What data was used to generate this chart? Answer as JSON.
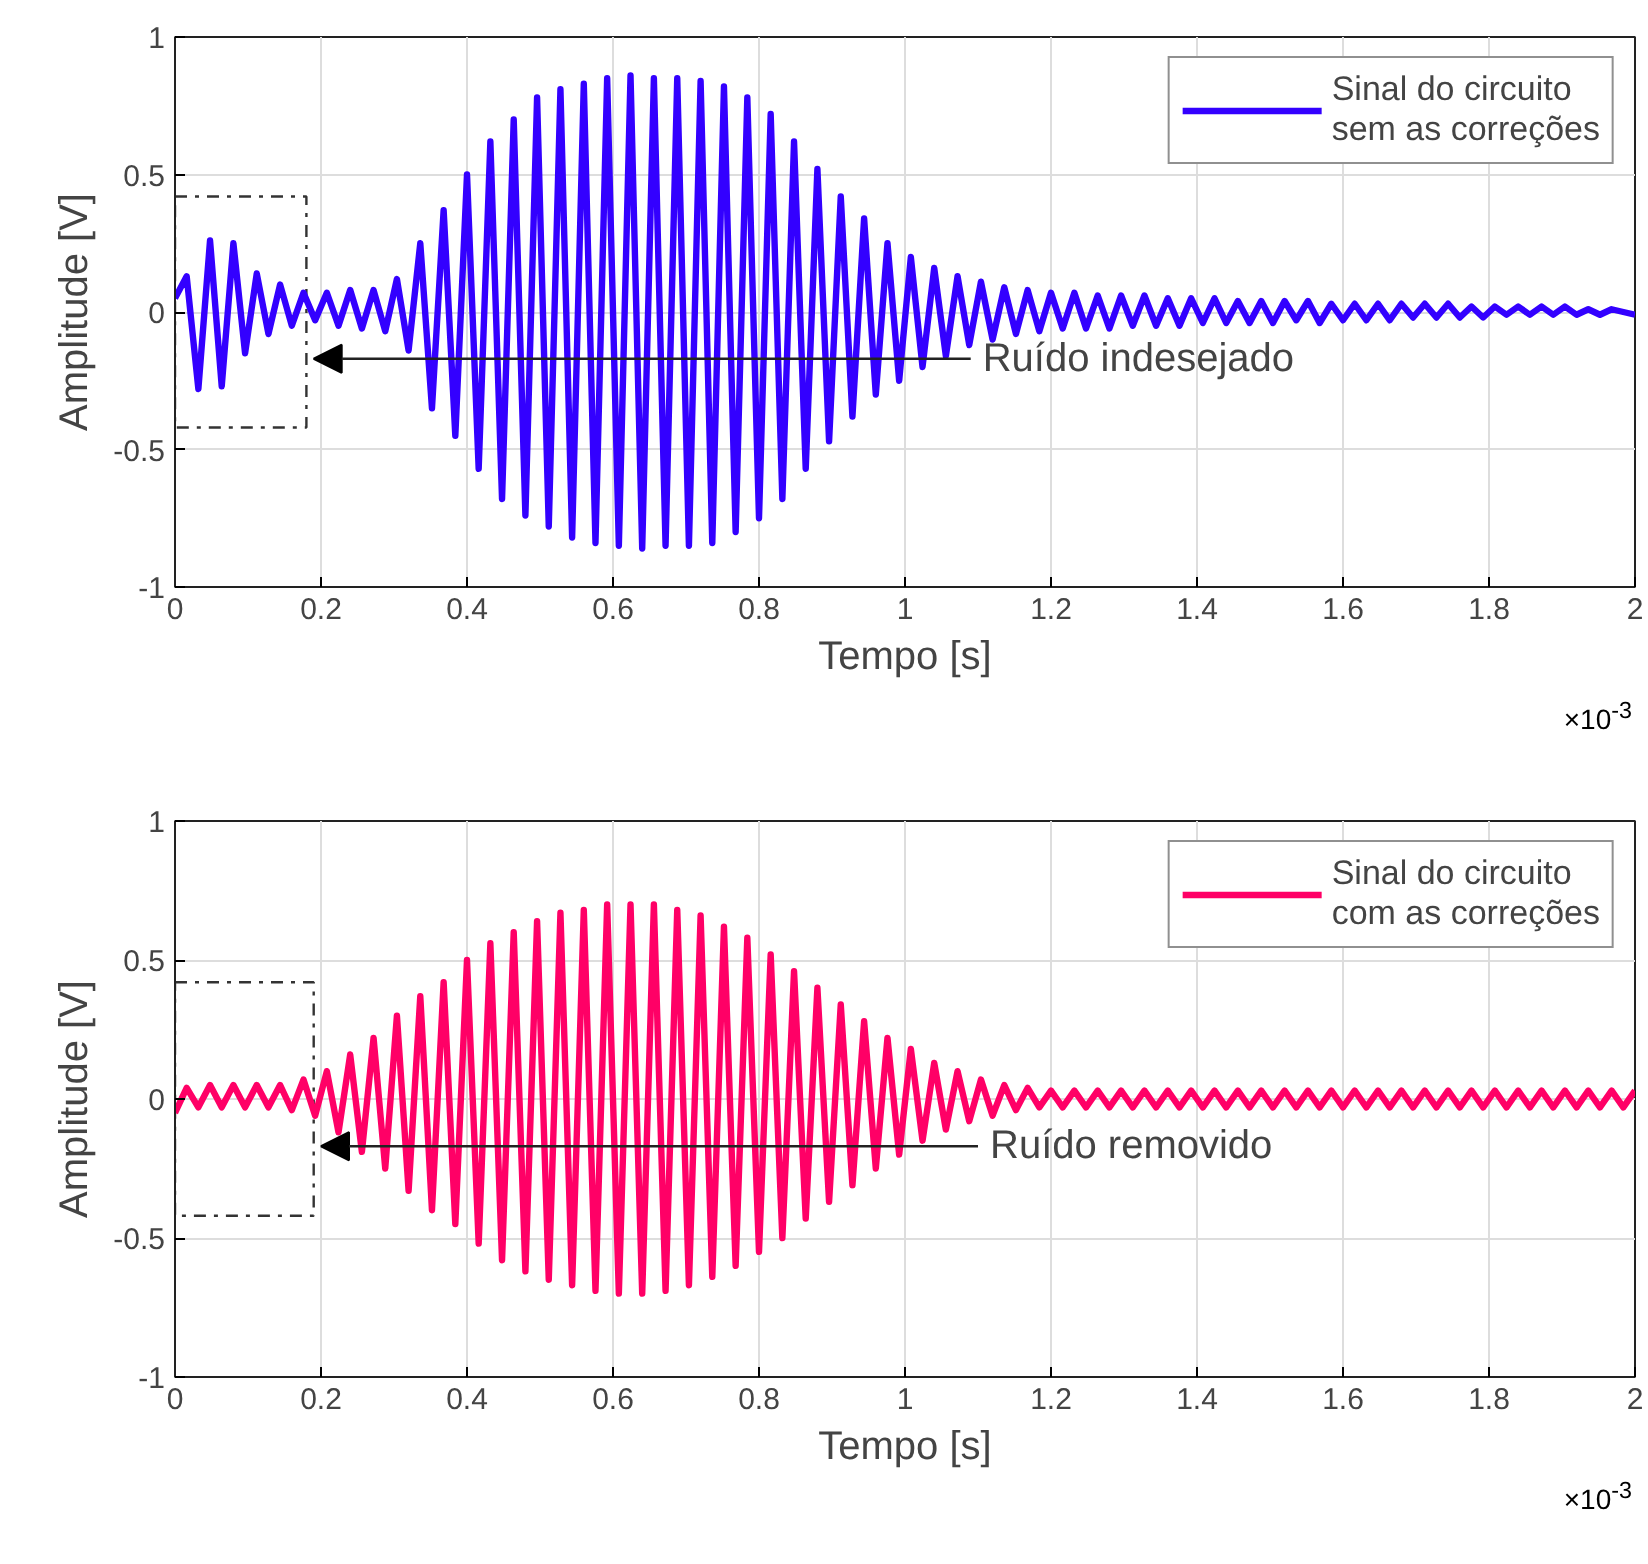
{
  "chart_data": [
    {
      "type": "line",
      "xlabel": "Tempo [s]",
      "ylabel": "Amplitude [V]",
      "xlim": [
        0,
        2
      ],
      "ylim": [
        -1,
        1
      ],
      "xticks": [
        0,
        0.2,
        0.4,
        0.6,
        0.8,
        1,
        1.2,
        1.4,
        1.6,
        1.8,
        2
      ],
      "yticks": [
        -1,
        -0.5,
        0,
        0.5,
        1
      ],
      "grid": true,
      "legend": "top right",
      "marker": "none",
      "line_style": "solid",
      "annotations": [
        "Ruído indesejado",
        "×10$^{-3}$"
      ],
      "x": [
        0,
        0.016,
        0.032,
        0.048,
        0.064,
        0.08,
        0.096,
        0.112,
        0.128,
        0.144,
        0.16,
        0.176,
        0.192,
        0.208,
        0.224,
        0.24,
        0.256,
        0.272,
        0.288,
        0.304,
        0.32,
        0.336,
        0.352,
        0.368,
        0.384,
        0.4,
        0.416,
        0.432,
        0.448,
        0.464,
        0.48,
        0.496,
        0.512,
        0.528,
        0.544,
        0.56,
        0.576,
        0.592,
        0.608,
        0.624,
        0.64,
        0.656,
        0.672,
        0.688,
        0.704,
        0.72,
        0.736,
        0.752,
        0.768,
        0.784,
        0.8,
        0.816,
        0.832,
        0.848,
        0.864,
        0.88,
        0.896,
        0.912,
        0.928,
        0.944,
        0.96,
        0.976,
        0.992,
        1.008,
        1.024,
        1.04,
        1.056,
        1.072,
        1.088,
        1.104,
        1.12,
        1.136,
        1.152,
        1.168,
        1.184,
        1.2,
        1.216,
        1.232,
        1.248,
        1.264,
        1.28,
        1.296,
        1.312,
        1.328,
        1.344,
        1.36,
        1.376,
        1.392,
        1.408,
        1.424,
        1.44,
        1.456,
        1.472,
        1.488,
        1.504,
        1.52,
        1.536,
        1.552,
        1.568,
        1.584,
        1.6,
        1.616,
        1.632,
        1.648,
        1.664,
        1.68,
        1.696,
        1.712,
        1.728,
        1.744,
        1.76,
        1.776,
        1.792,
        1.808,
        1.824,
        1.84,
        1.856,
        1.872,
        1.888,
        1.904,
        1.92,
        1.936,
        1.952,
        1.968,
        1.984,
        2.0
      ],
      "series": [
        {
          "name": "Sinal do circuito\nsem as correções",
          "color": "#3300ff",
          "values": [
            0.05,
            0.13,
            -0.28,
            0.26,
            -0.27,
            0.25,
            -0.15,
            0.14,
            -0.08,
            0.1,
            -0.05,
            0.07,
            -0.03,
            0.07,
            -0.05,
            0.08,
            -0.06,
            0.08,
            -0.07,
            0.12,
            -0.14,
            0.25,
            -0.35,
            0.37,
            -0.45,
            0.5,
            -0.57,
            0.62,
            -0.68,
            0.7,
            -0.74,
            0.78,
            -0.78,
            0.81,
            -0.82,
            0.83,
            -0.84,
            0.85,
            -0.85,
            0.86,
            -0.86,
            0.85,
            -0.85,
            0.85,
            -0.85,
            0.84,
            -0.84,
            0.82,
            -0.8,
            0.78,
            -0.75,
            0.72,
            -0.68,
            0.62,
            -0.57,
            0.52,
            -0.47,
            0.42,
            -0.38,
            0.34,
            -0.3,
            0.25,
            -0.25,
            0.2,
            -0.2,
            0.16,
            -0.16,
            0.13,
            -0.12,
            0.11,
            -0.1,
            0.09,
            -0.08,
            0.08,
            -0.07,
            0.07,
            -0.06,
            0.07,
            -0.06,
            0.06,
            -0.06,
            0.06,
            -0.05,
            0.06,
            -0.05,
            0.05,
            -0.05,
            0.05,
            -0.04,
            0.05,
            -0.04,
            0.04,
            -0.04,
            0.04,
            -0.04,
            0.04,
            -0.03,
            0.04,
            -0.04,
            0.03,
            -0.03,
            0.03,
            -0.03,
            0.03,
            -0.03,
            0.03,
            -0.02,
            0.03,
            -0.02,
            0.03,
            -0.02,
            0.02,
            -0.02,
            0.02,
            -0.01,
            0.02,
            -0.01,
            0.02,
            -0.01,
            0.02,
            -0.01,
            0.01,
            -0.01,
            0.01,
            0.0,
            -0.01
          ]
        }
      ]
    },
    {
      "type": "line",
      "xlabel": "Tempo [s]",
      "ylabel": "Amplitude [V]",
      "xlim": [
        0,
        2
      ],
      "ylim": [
        -1,
        1
      ],
      "xticks": [
        0,
        0.2,
        0.4,
        0.6,
        0.8,
        1,
        1.2,
        1.4,
        1.6,
        1.8,
        2
      ],
      "yticks": [
        -1,
        -0.5,
        0,
        0.5,
        1
      ],
      "grid": true,
      "legend": "top right",
      "marker": "none",
      "line_style": "solid",
      "annotations": [
        "Ruído removido",
        "×10$^{-3}$"
      ],
      "x": [
        0,
        0.016,
        0.032,
        0.048,
        0.064,
        0.08,
        0.096,
        0.112,
        0.128,
        0.144,
        0.16,
        0.176,
        0.192,
        0.208,
        0.224,
        0.24,
        0.256,
        0.272,
        0.288,
        0.304,
        0.32,
        0.336,
        0.352,
        0.368,
        0.384,
        0.4,
        0.416,
        0.432,
        0.448,
        0.464,
        0.48,
        0.496,
        0.512,
        0.528,
        0.544,
        0.56,
        0.576,
        0.592,
        0.608,
        0.624,
        0.64,
        0.656,
        0.672,
        0.688,
        0.704,
        0.72,
        0.736,
        0.752,
        0.768,
        0.784,
        0.8,
        0.816,
        0.832,
        0.848,
        0.864,
        0.88,
        0.896,
        0.912,
        0.928,
        0.944,
        0.96,
        0.976,
        0.992,
        1.008,
        1.024,
        1.04,
        1.056,
        1.072,
        1.088,
        1.104,
        1.12,
        1.136,
        1.152,
        1.168,
        1.184,
        1.2,
        1.216,
        1.232,
        1.248,
        1.264,
        1.28,
        1.296,
        1.312,
        1.328,
        1.344,
        1.36,
        1.376,
        1.392,
        1.408,
        1.424,
        1.44,
        1.456,
        1.472,
        1.488,
        1.504,
        1.52,
        1.536,
        1.552,
        1.568,
        1.584,
        1.6,
        1.616,
        1.632,
        1.648,
        1.664,
        1.68,
        1.696,
        1.712,
        1.728,
        1.744,
        1.76,
        1.776,
        1.792,
        1.808,
        1.824,
        1.84,
        1.856,
        1.872,
        1.888,
        1.904,
        1.92,
        1.936,
        1.952,
        1.968,
        1.984,
        2.0
      ],
      "series": [
        {
          "name": "Sinal do circuito\ncom as correções",
          "color": "#ff0066",
          "values": [
            -0.05,
            0.04,
            -0.03,
            0.05,
            -0.03,
            0.05,
            -0.03,
            0.05,
            -0.03,
            0.05,
            -0.04,
            0.07,
            -0.06,
            0.1,
            -0.12,
            0.16,
            -0.19,
            0.22,
            -0.25,
            0.3,
            -0.33,
            0.37,
            -0.4,
            0.42,
            -0.45,
            0.5,
            -0.52,
            0.56,
            -0.58,
            0.6,
            -0.62,
            0.64,
            -0.65,
            0.67,
            -0.67,
            0.68,
            -0.69,
            0.7,
            -0.7,
            0.7,
            -0.7,
            0.7,
            -0.69,
            0.68,
            -0.67,
            0.66,
            -0.64,
            0.62,
            -0.6,
            0.58,
            -0.55,
            0.52,
            -0.5,
            0.46,
            -0.43,
            0.4,
            -0.37,
            0.34,
            -0.31,
            0.28,
            -0.25,
            0.22,
            -0.2,
            0.18,
            -0.15,
            0.13,
            -0.11,
            0.1,
            -0.08,
            0.07,
            -0.06,
            0.05,
            -0.04,
            0.04,
            -0.03,
            0.03,
            -0.03,
            0.03,
            -0.03,
            0.03,
            -0.03,
            0.03,
            -0.03,
            0.03,
            -0.03,
            0.03,
            -0.03,
            0.03,
            -0.03,
            0.03,
            -0.03,
            0.03,
            -0.03,
            0.03,
            -0.03,
            0.03,
            -0.03,
            0.03,
            -0.03,
            0.03,
            -0.03,
            0.03,
            -0.03,
            0.03,
            -0.03,
            0.03,
            -0.03,
            0.03,
            -0.03,
            0.03,
            -0.03,
            0.03,
            -0.03,
            0.03,
            -0.03,
            0.03,
            -0.03,
            0.03,
            -0.03,
            0.03,
            -0.03,
            0.03,
            -0.03,
            0.03,
            -0.03,
            0.03
          ]
        }
      ]
    }
  ]
}
